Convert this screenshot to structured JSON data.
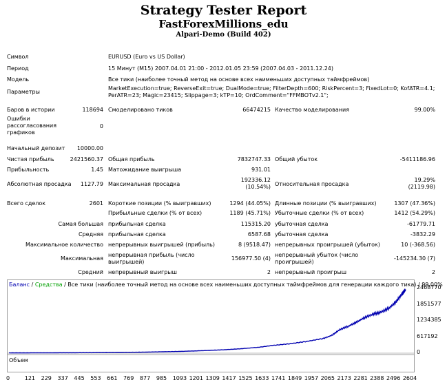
{
  "header": {
    "title": "Strategy Tester Report",
    "expert": "FastForexMillions_edu",
    "server": "Alpari-Demo (Build 402)"
  },
  "info": {
    "symbol_label": "Символ",
    "symbol_value": "EURUSD (Euro vs US Dollar)",
    "period_label": "Период",
    "period_value": "15 Минут (M15) 2007.04.01 21:00 - 2012.01.05 23:59 (2007.04.03 - 2011.12.24)",
    "model_label": "Модель",
    "model_value": "Все тики (наиболее точный метод на основе всех наименьших доступных таймфреймов)",
    "params_label": "Параметры",
    "params_line1": "MarketExecution=true; ReverseExit=true; DualMode=true; FilterDepth=600; RiskPercent=3; FixedLot=0; KofATR=4.1;",
    "params_line2": "PerATR=23; Magic=23415; Slippage=3; kTP=10; OrdComment=\"FFMBOTv2.1\";"
  },
  "stats": {
    "bars_label": "Баров в истории",
    "bars_value": "118694",
    "ticks_label": "Смоделировано тиков",
    "ticks_value": "66474215",
    "quality_label": "Качество моделирования",
    "quality_value": "99.00%",
    "errors_label": "Ошибки рассогласования графиков",
    "errors_value": "0",
    "deposit_label": "Начальный депозит",
    "deposit_value": "10000.00",
    "netprofit_label": "Чистая прибыль",
    "netprofit_value": "2421560.37",
    "grossprofit_label": "Общая прибыль",
    "grossprofit_value": "7832747.33",
    "grossloss_label": "Общий убыток",
    "grossloss_value": "-5411186.96",
    "pf_label": "Прибыльность",
    "pf_value": "1.45",
    "payoff_label": "Матожидание выигрыша",
    "payoff_value": "931.01",
    "absdd_label": "Абсолютная просадка",
    "absdd_value": "1127.79",
    "maxdd_label": "Максимальная просадка",
    "maxdd_value1": "192336.12",
    "maxdd_value2": "(10.54%)",
    "reldd_label": "Относительная просадка",
    "reldd_value1": "19.29%",
    "reldd_value2": "(2119.98)",
    "trades_label": "Всего сделок",
    "trades_value": "2601",
    "short_label": "Короткие позиции (% выигравших)",
    "short_value": "1294 (44.05%)",
    "long_label": "Длинные позиции (% выигравших)",
    "long_value": "1307 (47.36%)",
    "profittrades_label": "Прибыльные сделки (% от всех)",
    "profittrades_value": "1189 (45.71%)",
    "losstrades_label": "Убыточные сделки (% от всех)",
    "losstrades_value": "1412 (54.29%)",
    "largest_label": "Самая большая",
    "largest_profit_label": "прибыльная сделка",
    "largest_profit_value": "115315.20",
    "largest_loss_label": "убыточная сделка",
    "largest_loss_value": "-61779.71",
    "avg_label": "Средняя",
    "avg_profit_label": "прибыльная сделка",
    "avg_profit_value": "6587.68",
    "avg_loss_label": "убыточная сделка",
    "avg_loss_value": "-3832.29",
    "maxcount_label": "Максимальное количество",
    "maxcons_wins_label": "непрерывных выигрышей (прибыль)",
    "maxcons_wins_value": "8 (9518.47)",
    "maxcons_losses_label": "непрерывных проигрышей (убыток)",
    "maxcons_losses_value": "10 (-368.56)",
    "maximal_label": "Максимальная",
    "maxcons_profit_label": "непрерывная прибыль (число выигрышей)",
    "maxcons_profit_value": "156977.50 (4)",
    "maxcons_loss_label": "непрерывный убыток (число проигрышей)",
    "maxcons_loss_value": "-145234.30 (7)",
    "average_label": "Средний",
    "avgcons_wins_label": "непрерывный выигрыш",
    "avgcons_wins_value": "2",
    "avgcons_losses_label": "непрерывный проигрыш",
    "avgcons_losses_value": "2"
  },
  "chart_data": {
    "type": "line",
    "legend_balance": "Баланс",
    "legend_sep1": " / ",
    "legend_equity": "Средства",
    "legend_rest": " / Все тики (наиболее точный метод на основе всех наименьших доступных таймфреймов для генерации каждого тика) / 99.00%",
    "volume_label": "Объем",
    "y_ticks": [
      "2468770",
      "1851577",
      "1234385",
      "617192",
      "0"
    ],
    "x_ticks": [
      "0",
      "121",
      "229",
      "337",
      "445",
      "553",
      "661",
      "769",
      "877",
      "985",
      "1093",
      "1201",
      "1309",
      "1417",
      "1525",
      "1633",
      "1741",
      "1849",
      "1957",
      "2065",
      "2173",
      "2281",
      "2388",
      "2496",
      "2604"
    ],
    "xlim": [
      0,
      2650
    ],
    "ylim": [
      0,
      2468770
    ],
    "series": [
      {
        "name": "Баланс",
        "color": "#0000b0",
        "x": [
          0,
          121,
          229,
          337,
          445,
          553,
          661,
          769,
          877,
          985,
          1093,
          1201,
          1309,
          1417,
          1525,
          1633,
          1741,
          1849,
          1957,
          2065,
          2120,
          2173,
          2230,
          2281,
          2330,
          2388,
          2440,
          2496,
          2540,
          2580,
          2604
        ],
        "y": [
          10000,
          11000,
          13000,
          15000,
          17000,
          20000,
          25000,
          30000,
          38000,
          50000,
          62000,
          80000,
          105000,
          130000,
          170000,
          220000,
          300000,
          360000,
          450000,
          560000,
          680000,
          900000,
          1030000,
          1180000,
          1340000,
          1480000,
          1560000,
          1720000,
          1950000,
          2250000,
          2430000
        ]
      }
    ]
  }
}
